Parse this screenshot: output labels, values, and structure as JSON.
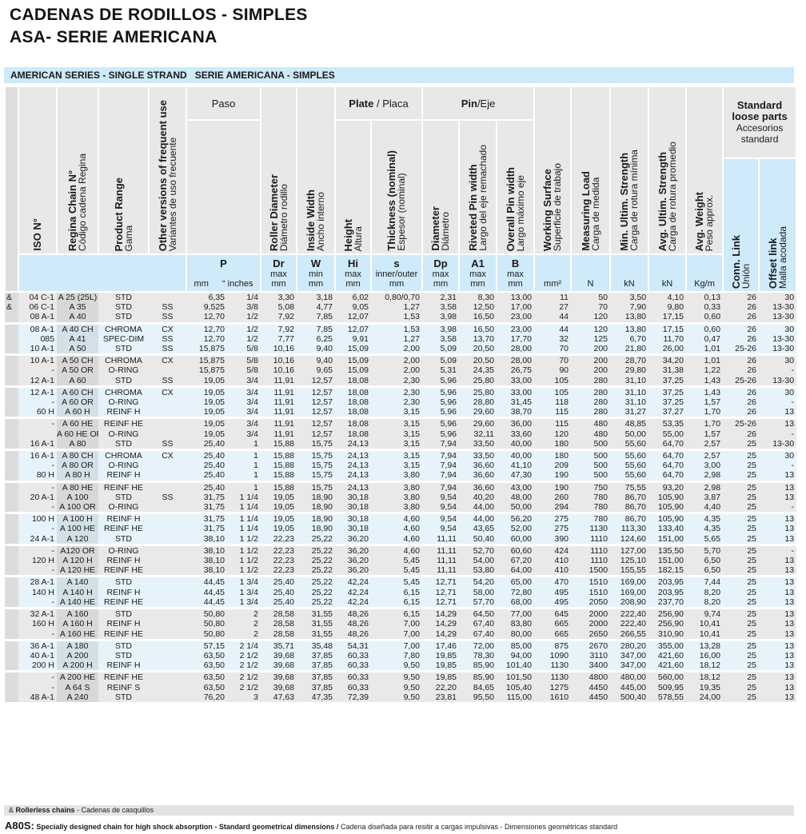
{
  "title": {
    "line1": "CADENAS DE RODILLOS - SIMPLES",
    "line2": "ASA- SERIE AMERICANA"
  },
  "band": {
    "en": "AMERICAN SERIES - SINGLE STRAND",
    "es": "SERIE AMERICANA - SIMPLES"
  },
  "header": {
    "iso": {
      "b": "ISO N°",
      "r": ""
    },
    "regina": {
      "b": "Regina Chain N°",
      "r": "Código cadena Regina"
    },
    "product": {
      "b": "Product Range",
      "r": "Gama"
    },
    "other": {
      "b": "Other versions of frequent use",
      "r": "Variantes de uso frecuente"
    },
    "paso": "Paso",
    "dr": {
      "b": "Roller Diameter",
      "r": "Diámetro rodillo"
    },
    "w": {
      "b": "Inside Width",
      "r": "Ancho interno"
    },
    "plate": {
      "b": "Plate",
      "r": " / Placa"
    },
    "hi": {
      "b": "Height",
      "r": "Altura"
    },
    "s": {
      "b": "Thickness (nominal)",
      "r": "Espesor (nominal)"
    },
    "pin": {
      "b": "Pin",
      "r": "/Eje"
    },
    "dp": {
      "b": "Diameter",
      "r": "Diámetro"
    },
    "a1": {
      "b": "Riveted Pin width",
      "r": "Largo del eje remachado"
    },
    "bw": {
      "b": "Overall Pin width",
      "r": "Largo máximo eje"
    },
    "ws": {
      "b": "Working Surface",
      "r": "Superficie de trabajo"
    },
    "ml": {
      "b": "Measuring Load",
      "r": "Carga de medida"
    },
    "min": {
      "b": "Min. Ultim. Strength",
      "r": "Carga de rotura mínima"
    },
    "avg": {
      "b": "Avg. Ultim. Strength",
      "r": "Carga de rotura promedio"
    },
    "wt": {
      "b": "Avg. Weight",
      "r": "Peso approx."
    },
    "loose": {
      "b1": "Standard",
      "b2": "loose parts",
      "r1": "Accesorios",
      "r2": "standard"
    },
    "conn": {
      "b": "Conn. Link",
      "r": "Unión"
    },
    "offset": {
      "b": "Offset link",
      "r": "Malla acodada"
    }
  },
  "units": {
    "p": {
      "sym": "P",
      "mm": "mm",
      "in": "“ inches"
    },
    "dr": {
      "sym": "Dr",
      "q": "max",
      "u": "mm"
    },
    "w": {
      "sym": "W",
      "q": "min",
      "u": "mm"
    },
    "hi": {
      "sym": "Hi",
      "q": "max",
      "u": "mm"
    },
    "s": {
      "sym": "s",
      "q": "inner/outer",
      "u": "mm"
    },
    "dp": {
      "sym": "Dp",
      "q": "max",
      "u": "mm"
    },
    "a1": {
      "sym": "A1",
      "q": "max",
      "u": "mm"
    },
    "b": {
      "sym": "B",
      "q": "max",
      "u": "mm"
    },
    "ws": "mm²",
    "ml": "N",
    "min": "kN",
    "avg": "kN",
    "wt": "Kg/m"
  },
  "rows": [
    [
      "&",
      "04 C-1",
      "A 25 (25L)",
      "STD",
      "",
      "6,35",
      "1/4",
      "3,30",
      "3,18",
      "6,02",
      "0,80/0,70",
      "2,31",
      "8,30",
      "13,00",
      "11",
      "50",
      "3,50",
      "4,10",
      "0,13",
      "26",
      "30"
    ],
    [
      "&",
      "06 C-1",
      "A 35",
      "STD",
      "SS",
      "9,525",
      "3/8",
      "5,08",
      "4,77",
      "9,05",
      "1,27",
      "3,58",
      "12,50",
      "17,00",
      "27",
      "70",
      "7,90",
      "9,80",
      "0,33",
      "26",
      "13-30"
    ],
    [
      "",
      "08 A-1",
      "A 40",
      "STD",
      "SS",
      "12,70",
      "1/2",
      "7,92",
      "7,85",
      "12,07",
      "1,53",
      "3,98",
      "16,50",
      "23,00",
      "44",
      "120",
      "13,80",
      "17,15",
      "0,60",
      "26",
      "13-30"
    ],
    [
      "",
      "08 A-1",
      "A 40 CH",
      "CHROMA",
      "CX",
      "12,70",
      "1/2",
      "7,92",
      "7,85",
      "12,07",
      "1,53",
      "3,98",
      "16,50",
      "23,00",
      "44",
      "120",
      "13,80",
      "17,15",
      "0,60",
      "26",
      "30"
    ],
    [
      "",
      "085",
      "A 41",
      "SPEC-DIM",
      "SS",
      "12,70",
      "1/2",
      "7,77",
      "6,25",
      "9,91",
      "1,27",
      "3,58",
      "13,70",
      "17,70",
      "32",
      "125",
      "6,70",
      "11,70",
      "0,47",
      "26",
      "13-30"
    ],
    [
      "",
      "10 A-1",
      "A 50",
      "STD",
      "SS",
      "15,875",
      "5/8",
      "10,16",
      "9,40",
      "15,09",
      "2,00",
      "5,09",
      "20,50",
      "28,00",
      "70",
      "200",
      "21,80",
      "26,00",
      "1,01",
      "25-26",
      "13-30"
    ],
    [
      "",
      "10 A-1",
      "A 50 CH",
      "CHROMA",
      "CX",
      "15,875",
      "5/8",
      "10,16",
      "9,40",
      "15,09",
      "2,00",
      "5,09",
      "20,50",
      "28,00",
      "70",
      "200",
      "28,70",
      "34,20",
      "1,01",
      "26",
      "30"
    ],
    [
      "",
      "-",
      "A 50 OR",
      "O-RING",
      "",
      "15,875",
      "5/8",
      "10,16",
      "9,65",
      "15,09",
      "2,00",
      "5,31",
      "24,35",
      "26,75",
      "90",
      "200",
      "29,80",
      "31,38",
      "1,22",
      "26",
      "-"
    ],
    [
      "",
      "12 A-1",
      "A 60",
      "STD",
      "SS",
      "19,05",
      "3/4",
      "11,91",
      "12,57",
      "18,08",
      "2,30",
      "5,96",
      "25,80",
      "33,00",
      "105",
      "280",
      "31,10",
      "37,25",
      "1,43",
      "25-26",
      "13-30"
    ],
    [
      "",
      "12 A-1",
      "A 60 CH",
      "CHROMA",
      "CX",
      "19,05",
      "3/4",
      "11,91",
      "12,57",
      "18,08",
      "2,30",
      "5,96",
      "25,80",
      "33,00",
      "105",
      "280",
      "31,10",
      "37,25",
      "1,43",
      "26",
      "30"
    ],
    [
      "",
      "-",
      "A 60 OR",
      "O-RING",
      "",
      "19,05",
      "3/4",
      "11,91",
      "12,57",
      "18,08",
      "2,30",
      "5,96",
      "28,80",
      "31,45",
      "118",
      "280",
      "31,10",
      "37,25",
      "1,57",
      "26",
      "-"
    ],
    [
      "",
      "60 H",
      "A 60 H",
      "REINF H",
      "",
      "19,05",
      "3/4",
      "11,91",
      "12,57",
      "18,08",
      "3,15",
      "5,96",
      "29,60",
      "38,70",
      "115",
      "280",
      "31,27",
      "37,27",
      "1,70",
      "26",
      "13"
    ],
    [
      "",
      "-",
      "A 60 HE",
      "REINF HE",
      "",
      "19,05",
      "3/4",
      "11,91",
      "12,57",
      "18,08",
      "3,15",
      "5,96",
      "29,60",
      "36,00",
      "115",
      "480",
      "48,85",
      "53,35",
      "1,70",
      "25-26",
      "13"
    ],
    [
      "",
      "",
      "A 60 HE OR",
      "O-RING",
      "",
      "19,05",
      "3/4",
      "11,91",
      "12,57",
      "18,08",
      "3,15",
      "5,96",
      "32,11",
      "33,60",
      "120",
      "480",
      "50,00",
      "55,00",
      "1,57",
      "26",
      "-"
    ],
    [
      "",
      "16 A-1",
      "A 80",
      "STD",
      "SS",
      "25,40",
      "1",
      "15,88",
      "15,75",
      "24,13",
      "3,15",
      "7,94",
      "33,50",
      "40,00",
      "180",
      "500",
      "55,60",
      "64,70",
      "2,57",
      "25",
      "13-30"
    ],
    [
      "",
      "16 A-1",
      "A 80 CH",
      "CHROMA",
      "CX",
      "25,40",
      "1",
      "15,88",
      "15,75",
      "24,13",
      "3,15",
      "7,94",
      "33,50",
      "40,00",
      "180",
      "500",
      "55,60",
      "64,70",
      "2,57",
      "25",
      "30"
    ],
    [
      "",
      "-",
      "A 80 OR",
      "O-RING",
      "",
      "25,40",
      "1",
      "15,88",
      "15,75",
      "24,13",
      "3,15",
      "7,94",
      "36,60",
      "41,10",
      "209",
      "500",
      "55,60",
      "64,70",
      "3,00",
      "25",
      "-"
    ],
    [
      "",
      "80 H",
      "A 80 H",
      "REINF H",
      "",
      "25,40",
      "1",
      "15,88",
      "15,75",
      "24,13",
      "3,80",
      "7,94",
      "36,60",
      "47,30",
      "190",
      "500",
      "55,60",
      "64,70",
      "2,98",
      "25",
      "13"
    ],
    [
      "",
      "-",
      "A 80 HE",
      "REINF HE",
      "",
      "25,40",
      "1",
      "15,88",
      "15,75",
      "24,13",
      "3,80",
      "7,94",
      "36,60",
      "43,00",
      "190",
      "750",
      "75,55",
      "93,20",
      "2,98",
      "25",
      "13"
    ],
    [
      "",
      "20 A-1",
      "A 100",
      "STD",
      "SS",
      "31,75",
      "1 1/4",
      "19,05",
      "18,90",
      "30,18",
      "3,80",
      "9,54",
      "40,20",
      "48,00",
      "260",
      "780",
      "86,70",
      "105,90",
      "3,87",
      "25",
      "13"
    ],
    [
      "",
      "-",
      "A 100 OR",
      "O-RING",
      "",
      "31,75",
      "1 1/4",
      "19,05",
      "18,90",
      "30,18",
      "3,80",
      "9,54",
      "44,00",
      "50,00",
      "294",
      "780",
      "86,70",
      "105,90",
      "4,40",
      "25",
      "-"
    ],
    [
      "",
      "100 H",
      "A 100 H",
      "REINF H",
      "",
      "31,75",
      "1 1/4",
      "19,05",
      "18,90",
      "30,18",
      "4,60",
      "9,54",
      "44,00",
      "56,20",
      "275",
      "780",
      "86,70",
      "105,90",
      "4,35",
      "25",
      "13"
    ],
    [
      "",
      "-",
      "A 100 HE",
      "REINF HE",
      "",
      "31,75",
      "1 1/4",
      "19,05",
      "18,90",
      "30,18",
      "4,60",
      "9,54",
      "43,65",
      "52,00",
      "275",
      "1130",
      "113,30",
      "133,40",
      "4,35",
      "25",
      "13"
    ],
    [
      "",
      "24 A-1",
      "A 120",
      "STD",
      "",
      "38,10",
      "1 1/2",
      "22,23",
      "25,22",
      "36,20",
      "4,60",
      "11,11",
      "50,40",
      "60,00",
      "390",
      "1110",
      "124,60",
      "151,00",
      "5,65",
      "25",
      "13"
    ],
    [
      "",
      "-",
      "A120 OR",
      "O-RING",
      "",
      "38,10",
      "1 1/2",
      "22,23",
      "25,22",
      "36,20",
      "4,60",
      "11,11",
      "52,70",
      "60,60",
      "424",
      "1110",
      "127,00",
      "135,50",
      "5,70",
      "25",
      "-"
    ],
    [
      "",
      "120 H",
      "A 120 H",
      "REINF H",
      "",
      "38,10",
      "1 1/2",
      "22,23",
      "25,22",
      "36,20",
      "5,45",
      "11,11",
      "54,00",
      "67,20",
      "410",
      "1110",
      "125,10",
      "151,00",
      "6,50",
      "25",
      "13"
    ],
    [
      "",
      "-",
      "A 120 HE",
      "REINF HE",
      "",
      "38,10",
      "1 1/2",
      "22,23",
      "25,22",
      "36,20",
      "5,45",
      "11,11",
      "53,80",
      "64,00",
      "410",
      "1500",
      "155,55",
      "182,15",
      "6,50",
      "25",
      "13"
    ],
    [
      "",
      "28 A-1",
      "A 140",
      "STD",
      "",
      "44,45",
      "1 3/4",
      "25,40",
      "25,22",
      "42,24",
      "5,45",
      "12,71",
      "54,20",
      "65,00",
      "470",
      "1510",
      "169,00",
      "203,95",
      "7,44",
      "25",
      "13"
    ],
    [
      "",
      "140 H",
      "A 140 H",
      "REINF H",
      "",
      "44,45",
      "1 3/4",
      "25,40",
      "25,22",
      "42,24",
      "6,15",
      "12,71",
      "58,00",
      "72,80",
      "495",
      "1510",
      "169,00",
      "203,95",
      "8,20",
      "25",
      "13"
    ],
    [
      "",
      "-",
      "A 140 HE",
      "REINF HE",
      "",
      "44,45",
      "1 3/4",
      "25,40",
      "25,22",
      "42,24",
      "6,15",
      "12,71",
      "57,70",
      "68,00",
      "495",
      "2050",
      "208,90",
      "237,70",
      "8,20",
      "25",
      "13"
    ],
    [
      "",
      "32 A-1",
      "A 160",
      "STD",
      "",
      "50,80",
      "2",
      "28,58",
      "31,55",
      "48,26",
      "6,15",
      "14,29",
      "64,50",
      "77,00",
      "645",
      "2000",
      "222,40",
      "256,90",
      "9,74",
      "25",
      "13"
    ],
    [
      "",
      "160 H",
      "A 160 H",
      "REINF H",
      "",
      "50,80",
      "2",
      "28,58",
      "31,55",
      "48,26",
      "7,00",
      "14,29",
      "67,40",
      "83,80",
      "665",
      "2000",
      "222,40",
      "256,90",
      "10,41",
      "25",
      "13"
    ],
    [
      "",
      "-",
      "A 160 HE",
      "REINF HE",
      "",
      "50,80",
      "2",
      "28,58",
      "31,55",
      "48,26",
      "7,00",
      "14,29",
      "67,40",
      "80,00",
      "665",
      "2650",
      "266,55",
      "310,90",
      "10,41",
      "25",
      "13"
    ],
    [
      "",
      "36 A-1",
      "A 180",
      "STD",
      "",
      "57,15",
      "2 1/4",
      "35,71",
      "35,48",
      "54,31",
      "7,00",
      "17,46",
      "72,00",
      "85,00",
      "875",
      "2670",
      "280,20",
      "355,00",
      "13,28",
      "25",
      "13"
    ],
    [
      "",
      "40 A-1",
      "A 200",
      "STD",
      "",
      "63,50",
      "2 1/2",
      "39,68",
      "37,85",
      "60,33",
      "7,80",
      "19,85",
      "78,30",
      "94,00",
      "1090",
      "3110",
      "347,00",
      "421,60",
      "16,00",
      "25",
      "13"
    ],
    [
      "",
      "200 H",
      "A 200 H",
      "REINF H",
      "",
      "63,50",
      "2 1/2",
      "39,68",
      "37,85",
      "60,33",
      "9,50",
      "19,85",
      "85,90",
      "101,40",
      "1130",
      "3400",
      "347,00",
      "421,60",
      "18,12",
      "25",
      "13"
    ],
    [
      "",
      "-",
      "A 200 HE",
      "REINF HE",
      "",
      "63,50",
      "2 1/2",
      "39,68",
      "37,85",
      "60,33",
      "9,50",
      "19,85",
      "85,90",
      "101,50",
      "1130",
      "4800",
      "480,00",
      "560,00",
      "18,12",
      "25",
      "13"
    ],
    [
      "",
      "-",
      "A 64 S",
      "REINF S",
      "",
      "63,50",
      "2 1/2",
      "39,68",
      "37,85",
      "60,33",
      "9,50",
      "22,20",
      "84,65",
      "105,40",
      "1275",
      "4450",
      "445,00",
      "509,95",
      "19,35",
      "25",
      "13"
    ],
    [
      "",
      "48 A-1",
      "A 240",
      "STD",
      "",
      "76,20",
      "3",
      "47,63",
      "47,35",
      "72,39",
      "9,50",
      "23,81",
      "95,50",
      "115,00",
      "1610",
      "4450",
      "500,40",
      "578,55",
      "24,00",
      "25",
      "13"
    ]
  ],
  "footer": {
    "mark": "&",
    "rollerless_b": "Rollerless chains",
    "rollerless_r": " - Cadenas de casquillos",
    "a80s": "A80S:",
    "a80s_b": " Specially designed chain for high shock absorption - Standard geometrical dimensions /",
    "a80s_r": " Cadena diseñada para resitir a cargas impulsivas - Dimensiones geométricas standard"
  },
  "colors": {
    "band": "#cdeaf8",
    "row_grey": "#ebe8e9",
    "row_blue": "#e6f3fb",
    "header": "#e8e8e8"
  }
}
